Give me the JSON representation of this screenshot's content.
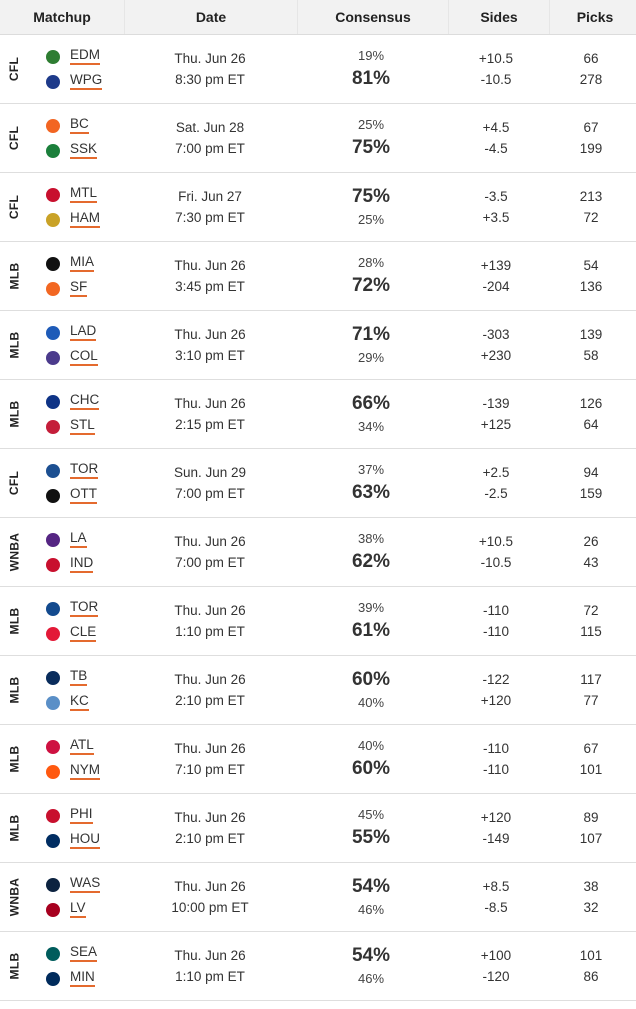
{
  "header": {
    "matchup": "Matchup",
    "date": "Date",
    "consensus": "Consensus",
    "sides": "Sides",
    "picks": "Picks"
  },
  "rows": [
    {
      "league": "CFL",
      "away": {
        "abbr": "EDM",
        "color": "#2e7d32"
      },
      "home": {
        "abbr": "WPG",
        "color": "#1e3a8a"
      },
      "day": "Thu. Jun 26",
      "time": "8:30 pm ET",
      "away_pct": "19%",
      "home_pct": "81%",
      "away_side": "+10.5",
      "home_side": "-10.5",
      "away_picks": "66",
      "home_picks": "278",
      "leader": "home"
    },
    {
      "league": "CFL",
      "away": {
        "abbr": "BC",
        "color": "#f26522"
      },
      "home": {
        "abbr": "SSK",
        "color": "#1b7f3b"
      },
      "day": "Sat. Jun 28",
      "time": "7:00 pm ET",
      "away_pct": "25%",
      "home_pct": "75%",
      "away_side": "+4.5",
      "home_side": "-4.5",
      "away_picks": "67",
      "home_picks": "199",
      "leader": "home"
    },
    {
      "league": "CFL",
      "away": {
        "abbr": "MTL",
        "color": "#c8102e"
      },
      "home": {
        "abbr": "HAM",
        "color": "#c9a227"
      },
      "day": "Fri. Jun 27",
      "time": "7:30 pm ET",
      "away_pct": "75%",
      "home_pct": "25%",
      "away_side": "-3.5",
      "home_side": "+3.5",
      "away_picks": "213",
      "home_picks": "72",
      "leader": "away"
    },
    {
      "league": "MLB",
      "away": {
        "abbr": "MIA",
        "color": "#111111"
      },
      "home": {
        "abbr": "SF",
        "color": "#f26722"
      },
      "day": "Thu. Jun 26",
      "time": "3:45 pm ET",
      "away_pct": "28%",
      "home_pct": "72%",
      "away_side": "+139",
      "home_side": "-204",
      "away_picks": "54",
      "home_picks": "136",
      "leader": "home"
    },
    {
      "league": "MLB",
      "away": {
        "abbr": "LAD",
        "color": "#1e5bb8"
      },
      "home": {
        "abbr": "COL",
        "color": "#4b3b8c"
      },
      "day": "Thu. Jun 26",
      "time": "3:10 pm ET",
      "away_pct": "71%",
      "home_pct": "29%",
      "away_side": "-303",
      "home_side": "+230",
      "away_picks": "139",
      "home_picks": "58",
      "leader": "away"
    },
    {
      "league": "MLB",
      "away": {
        "abbr": "CHC",
        "color": "#0e3386"
      },
      "home": {
        "abbr": "STL",
        "color": "#c41e3a"
      },
      "day": "Thu. Jun 26",
      "time": "2:15 pm ET",
      "away_pct": "66%",
      "home_pct": "34%",
      "away_side": "-139",
      "home_side": "+125",
      "away_picks": "126",
      "home_picks": "64",
      "leader": "away"
    },
    {
      "league": "CFL",
      "away": {
        "abbr": "TOR",
        "color": "#1c4f91"
      },
      "home": {
        "abbr": "OTT",
        "color": "#111111"
      },
      "day": "Sun. Jun 29",
      "time": "7:00 pm ET",
      "away_pct": "37%",
      "home_pct": "63%",
      "away_side": "+2.5",
      "home_side": "-2.5",
      "away_picks": "94",
      "home_picks": "159",
      "leader": "home"
    },
    {
      "league": "WNBA",
      "away": {
        "abbr": "LA",
        "color": "#552583"
      },
      "home": {
        "abbr": "IND",
        "color": "#c8102e"
      },
      "day": "Thu. Jun 26",
      "time": "7:00 pm ET",
      "away_pct": "38%",
      "home_pct": "62%",
      "away_side": "+10.5",
      "home_side": "-10.5",
      "away_picks": "26",
      "home_picks": "43",
      "leader": "home"
    },
    {
      "league": "MLB",
      "away": {
        "abbr": "TOR",
        "color": "#134a8e"
      },
      "home": {
        "abbr": "CLE",
        "color": "#e31937"
      },
      "day": "Thu. Jun 26",
      "time": "1:10 pm ET",
      "away_pct": "39%",
      "home_pct": "61%",
      "away_side": "-110",
      "home_side": "-110",
      "away_picks": "72",
      "home_picks": "115",
      "leader": "home"
    },
    {
      "league": "MLB",
      "away": {
        "abbr": "TB",
        "color": "#092c5c"
      },
      "home": {
        "abbr": "KC",
        "color": "#5a8fc7"
      },
      "day": "Thu. Jun 26",
      "time": "2:10 pm ET",
      "away_pct": "60%",
      "home_pct": "40%",
      "away_side": "-122",
      "home_side": "+120",
      "away_picks": "117",
      "home_picks": "77",
      "leader": "away"
    },
    {
      "league": "MLB",
      "away": {
        "abbr": "ATL",
        "color": "#ce1141"
      },
      "home": {
        "abbr": "NYM",
        "color": "#ff5910"
      },
      "day": "Thu. Jun 26",
      "time": "7:10 pm ET",
      "away_pct": "40%",
      "home_pct": "60%",
      "away_side": "-110",
      "home_side": "-110",
      "away_picks": "67",
      "home_picks": "101",
      "leader": "home"
    },
    {
      "league": "MLB",
      "away": {
        "abbr": "PHI",
        "color": "#c8102e"
      },
      "home": {
        "abbr": "HOU",
        "color": "#002d62"
      },
      "day": "Thu. Jun 26",
      "time": "2:10 pm ET",
      "away_pct": "45%",
      "home_pct": "55%",
      "away_side": "+120",
      "home_side": "-149",
      "away_picks": "89",
      "home_picks": "107",
      "leader": "home"
    },
    {
      "league": "WNBA",
      "away": {
        "abbr": "WAS",
        "color": "#0c2340"
      },
      "home": {
        "abbr": "LV",
        "color": "#a7001f"
      },
      "day": "Thu. Jun 26",
      "time": "10:00 pm ET",
      "away_pct": "54%",
      "home_pct": "46%",
      "away_side": "+8.5",
      "home_side": "-8.5",
      "away_picks": "38",
      "home_picks": "32",
      "leader": "away"
    },
    {
      "league": "MLB",
      "away": {
        "abbr": "SEA",
        "color": "#005c5c"
      },
      "home": {
        "abbr": "MIN",
        "color": "#002b5c"
      },
      "day": "Thu. Jun 26",
      "time": "1:10 pm ET",
      "away_pct": "54%",
      "home_pct": "46%",
      "away_side": "+100",
      "home_side": "-120",
      "away_picks": "101",
      "home_picks": "86",
      "leader": "away"
    }
  ]
}
